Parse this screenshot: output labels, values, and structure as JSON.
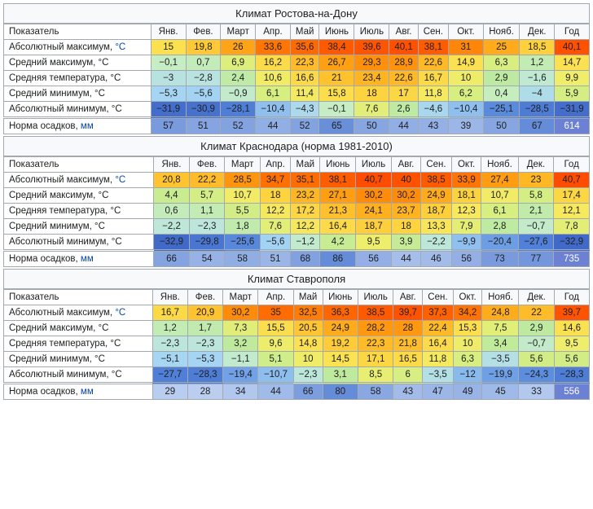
{
  "months": [
    "Янв.",
    "Фев.",
    "Март",
    "Апр.",
    "Май",
    "Июнь",
    "Июль",
    "Авг.",
    "Сен.",
    "Окт.",
    "Нояб.",
    "Дек."
  ],
  "indicator_label": "Показатель",
  "year_label": "Год",
  "unit_c": "°C",
  "unit_mm": "мм",
  "tables": [
    {
      "title": "Климат Ростова-на-Дону",
      "rows": [
        {
          "label": "Абсолютный максимум,",
          "unit": "c",
          "link": true,
          "vals": [
            15.0,
            19.8,
            26.0,
            33.6,
            35.6,
            38.4,
            39.6,
            40.1,
            38.1,
            31.0,
            25.0,
            18.5
          ],
          "year": 40.1,
          "scale": "temp"
        },
        {
          "label": "Средний максимум,",
          "unit": "c",
          "link": false,
          "vals": [
            -0.1,
            0.7,
            6.9,
            16.2,
            22.3,
            26.7,
            29.3,
            28.9,
            22.6,
            14.9,
            6.3,
            1.2
          ],
          "year": 14.7,
          "scale": "temp"
        },
        {
          "label": "Средняя температура,",
          "unit": "c",
          "link": false,
          "vals": [
            -3,
            -2.8,
            2.4,
            10.6,
            16.6,
            21.0,
            23.4,
            22.6,
            16.7,
            10.0,
            2.9,
            -1.6
          ],
          "year": 9.9,
          "scale": "temp"
        },
        {
          "label": "Средний минимум,",
          "unit": "c",
          "link": false,
          "vals": [
            -5.3,
            -5.6,
            -0.9,
            6.1,
            11.4,
            15.8,
            18.0,
            17.0,
            11.8,
            6.2,
            0.4,
            -4
          ],
          "year": 5.9,
          "scale": "temp"
        },
        {
          "label": "Абсолютный минимум,",
          "unit": "c",
          "link": false,
          "vals": [
            -31.9,
            -30.9,
            -28.1,
            -10.4,
            -4.3,
            -0.1,
            7.6,
            2.6,
            -4.6,
            -10.4,
            -25.1,
            -28.5
          ],
          "year": -31.9,
          "scale": "temp"
        },
        {
          "label": "Норма осадков,",
          "unit": "mm",
          "link": true,
          "vals": [
            57,
            51,
            52,
            44,
            52,
            65,
            50,
            44,
            43,
            39,
            50,
            67
          ],
          "year": 614,
          "scale": "precip",
          "sep": true
        }
      ]
    },
    {
      "title": "Климат Краснодара (норма 1981-2010)",
      "rows": [
        {
          "label": "Абсолютный максимум,",
          "unit": "c",
          "link": true,
          "vals": [
            20.8,
            22.2,
            28.5,
            34.7,
            35.1,
            38.1,
            40.7,
            40,
            38.5,
            33.9,
            27.4,
            23
          ],
          "year": 40.7,
          "scale": "temp"
        },
        {
          "label": "Средний максимум,",
          "unit": "c",
          "link": false,
          "vals": [
            4.4,
            5.7,
            10.7,
            18,
            23.2,
            27.1,
            30.2,
            30.2,
            24.9,
            18.1,
            10.7,
            5.8
          ],
          "year": 17.4,
          "scale": "temp"
        },
        {
          "label": "Средняя температура,",
          "unit": "c",
          "link": false,
          "vals": [
            0.6,
            1.1,
            5.5,
            12.2,
            17.2,
            21.3,
            24.1,
            23.7,
            18.7,
            12.3,
            6.1,
            2.1
          ],
          "year": 12.1,
          "scale": "temp"
        },
        {
          "label": "Средний минимум,",
          "unit": "c",
          "link": false,
          "vals": [
            -2.2,
            -2.3,
            1.8,
            7.6,
            12.2,
            16.4,
            18.7,
            18,
            13.3,
            7.9,
            2.8,
            -0.7
          ],
          "year": 7.8,
          "scale": "temp"
        },
        {
          "label": "Абсолютный минимум,",
          "unit": "c",
          "link": false,
          "vals": [
            -32.9,
            -29.8,
            -25.6,
            -5.6,
            -1.2,
            4.2,
            9.5,
            3.9,
            -2.2,
            -9.9,
            -20.4,
            -27.6
          ],
          "year": -32.9,
          "scale": "temp"
        },
        {
          "label": "Норма осадков,",
          "unit": "mm",
          "link": true,
          "vals": [
            66,
            54,
            58,
            51,
            68,
            86,
            56,
            44,
            46,
            56,
            73,
            77
          ],
          "year": 735,
          "scale": "precip",
          "sep": true
        }
      ]
    },
    {
      "title": "Климат Ставрополя",
      "rows": [
        {
          "label": "Абсолютный максимум,",
          "unit": "c",
          "link": true,
          "vals": [
            16.7,
            20.9,
            30.2,
            35.0,
            32.5,
            36.3,
            38.5,
            39.7,
            37.3,
            34.2,
            24.8,
            22.0
          ],
          "year": 39.7,
          "scale": "temp"
        },
        {
          "label": "Средний максимум,",
          "unit": "c",
          "link": false,
          "vals": [
            1.2,
            1.7,
            7.3,
            15.5,
            20.5,
            24.9,
            28.2,
            28.0,
            22.4,
            15.3,
            7.5,
            2.9
          ],
          "year": 14.6,
          "scale": "temp"
        },
        {
          "label": "Средняя температура,",
          "unit": "c",
          "link": false,
          "vals": [
            -2.3,
            -2.3,
            3.2,
            9.6,
            14.8,
            19.2,
            22.3,
            21.8,
            16.4,
            10.0,
            3.4,
            -0.7
          ],
          "year": 9.5,
          "scale": "temp"
        },
        {
          "label": "Средний минимум,",
          "unit": "c",
          "link": false,
          "vals": [
            -5.1,
            -5.3,
            -1.1,
            5.1,
            10,
            14.5,
            17.1,
            16.5,
            11.8,
            6.3,
            -3.5,
            5.6
          ],
          "year": 5.6,
          "scale": "temp",
          "override": {
            "10": "−3,5"
          }
        },
        {
          "label": "Абсолютный минимум,",
          "unit": "c",
          "link": false,
          "vals": [
            -27.7,
            -28.3,
            -19.4,
            -10.7,
            -2.3,
            3.1,
            8.5,
            6.0,
            -3.5,
            -12.0,
            -19.9,
            -24.3
          ],
          "year": -28.3,
          "scale": "temp"
        },
        {
          "label": "Норма осадков,",
          "unit": "mm",
          "link": true,
          "vals": [
            29,
            28,
            34,
            44,
            66,
            80,
            58,
            43,
            47,
            49,
            45,
            33
          ],
          "year": 556,
          "scale": "precip",
          "sep": true
        }
      ]
    }
  ]
}
